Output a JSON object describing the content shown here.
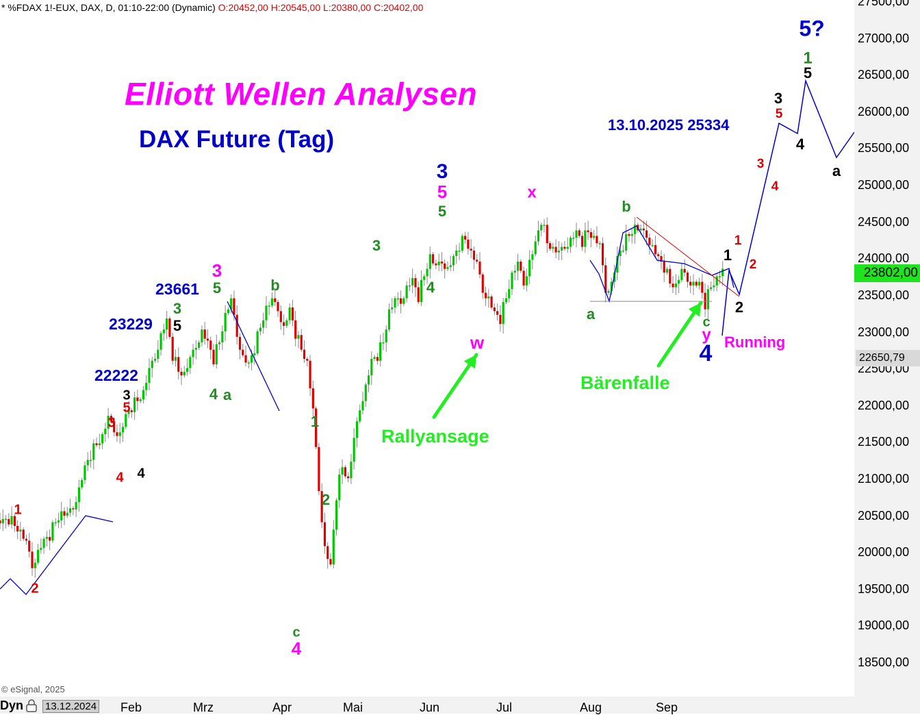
{
  "header": {
    "meta": "* %FDAX 1!-EUX, DAX, D, 01:10-22:00 (Dynamic)",
    "ohlc": "O:20452,00 H:20545,00 L:20380,00 C:20402,00"
  },
  "title": "Elliott Wellen Analysen",
  "subtitle": "DAX Future (Tag)",
  "target_note": "13.10.2025 25334",
  "notes": {
    "rallyansage": "Rallyansage",
    "baerenfalle": "Bärenfalle",
    "running": "Running"
  },
  "copyright": "© eSignal, 2025",
  "time_axis": {
    "mode": "Dyn",
    "start_date": "13.12.2024",
    "months": [
      "Feb",
      "Mrz",
      "Apr",
      "Mai",
      "Jun",
      "Jul",
      "Aug",
      "Sep"
    ]
  },
  "price_axis": {
    "last_price": "23802,00",
    "ref_price": "22650,79",
    "ticks": [
      "27500,00",
      "27000,00",
      "26500,00",
      "26000,00",
      "25500,00",
      "25000,00",
      "24500,00",
      "24000,00",
      "23500,00",
      "23000,00",
      "22500,00",
      "22000,00",
      "21500,00",
      "21000,00",
      "20500,00",
      "20000,00",
      "19500,00",
      "19000,00",
      "18500,00"
    ]
  },
  "colors": {
    "up": "#00c800",
    "down": "#e00000",
    "wave_path": "#0000cc",
    "trendline": "#e00000",
    "support": "#888888",
    "arrow": "#22ee22"
  },
  "chart_data": {
    "type": "candlestick",
    "ylim": [
      18000,
      27700
    ],
    "y_ticks": [
      27500,
      27000,
      26500,
      26000,
      25500,
      25000,
      24500,
      24000,
      23500,
      23000,
      22500,
      22000,
      21500,
      21000,
      20500,
      20000,
      19500,
      19000,
      18500
    ],
    "x_months": [
      "Feb",
      "Mrz",
      "Apr",
      "Mai",
      "Jun",
      "Jul",
      "Aug",
      "Sep"
    ],
    "close_path": [
      [
        0,
        20450
      ],
      [
        2,
        20420
      ],
      [
        4,
        20470
      ],
      [
        6,
        20400
      ],
      [
        8,
        20300
      ],
      [
        10,
        20100
      ],
      [
        12,
        19850
      ],
      [
        14,
        20050
      ],
      [
        16,
        20150
      ],
      [
        18,
        20250
      ],
      [
        20,
        20450
      ],
      [
        22,
        20550
      ],
      [
        24,
        20480
      ],
      [
        26,
        20650
      ],
      [
        28,
        20900
      ],
      [
        30,
        21150
      ],
      [
        32,
        21350
      ],
      [
        34,
        21500
      ],
      [
        36,
        21600
      ],
      [
        38,
        21800
      ],
      [
        40,
        21700
      ],
      [
        42,
        21650
      ],
      [
        44,
        21850
      ],
      [
        46,
        22000
      ],
      [
        48,
        22100
      ],
      [
        50,
        22200
      ],
      [
        52,
        22450
      ],
      [
        54,
        22700
      ],
      [
        56,
        23000
      ],
      [
        58,
        23150
      ],
      [
        60,
        22700
      ],
      [
        62,
        22500
      ],
      [
        64,
        22450
      ],
      [
        66,
        22600
      ],
      [
        68,
        22850
      ],
      [
        70,
        23050
      ],
      [
        72,
        22850
      ],
      [
        74,
        22650
      ],
      [
        76,
        22900
      ],
      [
        78,
        23250
      ],
      [
        80,
        23400
      ],
      [
        82,
        23000
      ],
      [
        84,
        22700
      ],
      [
        86,
        22550
      ],
      [
        88,
        22800
      ],
      [
        90,
        23100
      ],
      [
        92,
        23350
      ],
      [
        94,
        23400
      ],
      [
        96,
        23350
      ],
      [
        98,
        23100
      ],
      [
        100,
        23300
      ],
      [
        102,
        23000
      ],
      [
        104,
        22800
      ],
      [
        106,
        22600
      ],
      [
        108,
        21900
      ],
      [
        110,
        20900
      ],
      [
        112,
        20100
      ],
      [
        114,
        19800
      ],
      [
        116,
        20800
      ],
      [
        118,
        21200
      ],
      [
        120,
        21000
      ],
      [
        122,
        21500
      ],
      [
        124,
        22000
      ],
      [
        126,
        22300
      ],
      [
        128,
        22600
      ],
      [
        130,
        22700
      ],
      [
        132,
        22900
      ],
      [
        134,
        23300
      ],
      [
        136,
        23400
      ],
      [
        138,
        23450
      ],
      [
        140,
        23650
      ],
      [
        142,
        23700
      ],
      [
        144,
        23500
      ],
      [
        146,
        23800
      ],
      [
        148,
        24050
      ],
      [
        150,
        23850
      ],
      [
        152,
        24000
      ],
      [
        154,
        23900
      ],
      [
        156,
        24000
      ],
      [
        158,
        24200
      ],
      [
        160,
        24300
      ],
      [
        162,
        24100
      ],
      [
        164,
        23900
      ],
      [
        166,
        23600
      ],
      [
        168,
        23500
      ],
      [
        170,
        23250
      ],
      [
        172,
        23200
      ],
      [
        174,
        23500
      ],
      [
        176,
        23800
      ],
      [
        178,
        23900
      ],
      [
        180,
        23700
      ],
      [
        182,
        24000
      ],
      [
        184,
        24200
      ],
      [
        186,
        24550
      ],
      [
        188,
        24250
      ],
      [
        190,
        24150
      ],
      [
        192,
        24050
      ],
      [
        194,
        24200
      ],
      [
        196,
        24300
      ],
      [
        198,
        24350
      ],
      [
        200,
        24250
      ],
      [
        202,
        24400
      ],
      [
        204,
        24300
      ],
      [
        206,
        24150
      ],
      [
        208,
        23600
      ],
      [
        210,
        23700
      ],
      [
        212,
        24000
      ],
      [
        214,
        24200
      ],
      [
        216,
        24350
      ],
      [
        218,
        24450
      ],
      [
        220,
        24350
      ],
      [
        222,
        24350
      ],
      [
        224,
        24200
      ],
      [
        226,
        24000
      ],
      [
        228,
        23900
      ],
      [
        230,
        23700
      ],
      [
        232,
        23650
      ],
      [
        234,
        23800
      ],
      [
        236,
        23750
      ],
      [
        238,
        23700
      ],
      [
        240,
        23650
      ],
      [
        242,
        23400
      ],
      [
        244,
        23650
      ],
      [
        246,
        23750
      ],
      [
        248,
        23802
      ]
    ],
    "wave_projection": [
      [
        "Sep end",
        23450
      ],
      [
        "Oct",
        23700
      ],
      [
        "Oct",
        23300
      ],
      [
        "Okt",
        25800
      ],
      [
        "Nov",
        25650
      ],
      [
        "Dez",
        26400
      ],
      [
        "Jan",
        25400
      ],
      [
        "Feb",
        25700
      ]
    ],
    "wave_labels": [
      {
        "text": "1",
        "price": 20600,
        "color": "#e00000"
      },
      {
        "text": "2",
        "price": 19550,
        "color": "#e00000"
      },
      {
        "text": "3",
        "price": 21800,
        "color": "#e00000"
      },
      {
        "text": "4",
        "price": 21050,
        "color": "#e00000"
      },
      {
        "text": "5",
        "price": 21950,
        "color": "#e00000"
      },
      {
        "text": "3",
        "price": 22100,
        "color": "#000000"
      },
      {
        "text": "4",
        "price": 21100,
        "color": "#000000"
      },
      {
        "text": "22222",
        "price": 22500,
        "color": "#0000cc"
      },
      {
        "text": "23229",
        "price": 23200,
        "color": "#0000cc"
      },
      {
        "text": "23661",
        "price": 23600,
        "color": "#0000cc"
      },
      {
        "text": "3",
        "price": 23300,
        "color": "#228b22"
      },
      {
        "text": "5",
        "price": 23150,
        "color": "#000000"
      },
      {
        "text": "3",
        "price": 23800,
        "color": "#ff00ff"
      },
      {
        "text": "5",
        "price": 23600,
        "color": "#228b22"
      },
      {
        "text": "4",
        "price": 22150,
        "color": "#228b22"
      },
      {
        "text": "a",
        "price": 22150,
        "color": "#228b22"
      },
      {
        "text": "b",
        "price": 23600,
        "color": "#228b22"
      },
      {
        "text": "c",
        "price": 18900,
        "color": "#228b22"
      },
      {
        "text": "4",
        "price": 18650,
        "color": "#ff00ff"
      },
      {
        "text": "1",
        "price": 21750,
        "color": "#228b22"
      },
      {
        "text": "2",
        "price": 20850,
        "color": "#228b22"
      },
      {
        "text": "3",
        "price": 24150,
        "color": "#228b22"
      },
      {
        "text": "4",
        "price": 23600,
        "color": "#228b22"
      },
      {
        "text": "3",
        "price": 25300,
        "color": "#0000cc"
      },
      {
        "text": "5",
        "price": 25000,
        "color": "#ff00ff"
      },
      {
        "text": "5",
        "price": 24650,
        "color": "#228b22"
      },
      {
        "text": "w",
        "price": 22950,
        "color": "#ff00ff"
      },
      {
        "text": "x",
        "price": 24900,
        "color": "#ff00ff"
      },
      {
        "text": "b",
        "price": 24650,
        "color": "#228b22"
      },
      {
        "text": "a",
        "price": 23250,
        "color": "#228b22"
      },
      {
        "text": "c",
        "price": 23150,
        "color": "#228b22"
      },
      {
        "text": "y",
        "price": 22950,
        "color": "#ff00ff"
      },
      {
        "text": "4",
        "price": 22650,
        "color": "#0000cc"
      },
      {
        "text": "1",
        "price": 24000,
        "color": "#000000"
      },
      {
        "text": "2",
        "price": 23300,
        "color": "#000000"
      },
      {
        "text": "1",
        "price": 24300,
        "color": "#e00000"
      },
      {
        "text": "2",
        "price": 23700,
        "color": "#e00000"
      },
      {
        "text": "3",
        "price": 25350,
        "color": "#e00000"
      },
      {
        "text": "4",
        "price": 25000,
        "color": "#e00000"
      },
      {
        "text": "5",
        "price": 26150,
        "color": "#e00000"
      },
      {
        "text": "3",
        "price": 26400,
        "color": "#000000"
      },
      {
        "text": "4",
        "price": 25600,
        "color": "#000000"
      },
      {
        "text": "5",
        "price": 26700,
        "color": "#000000"
      },
      {
        "text": "1",
        "price": 26900,
        "color": "#228b22"
      },
      {
        "text": "5?",
        "price": 27250,
        "color": "#0000cc"
      },
      {
        "text": "a",
        "price": 25300,
        "color": "#000000"
      }
    ]
  }
}
